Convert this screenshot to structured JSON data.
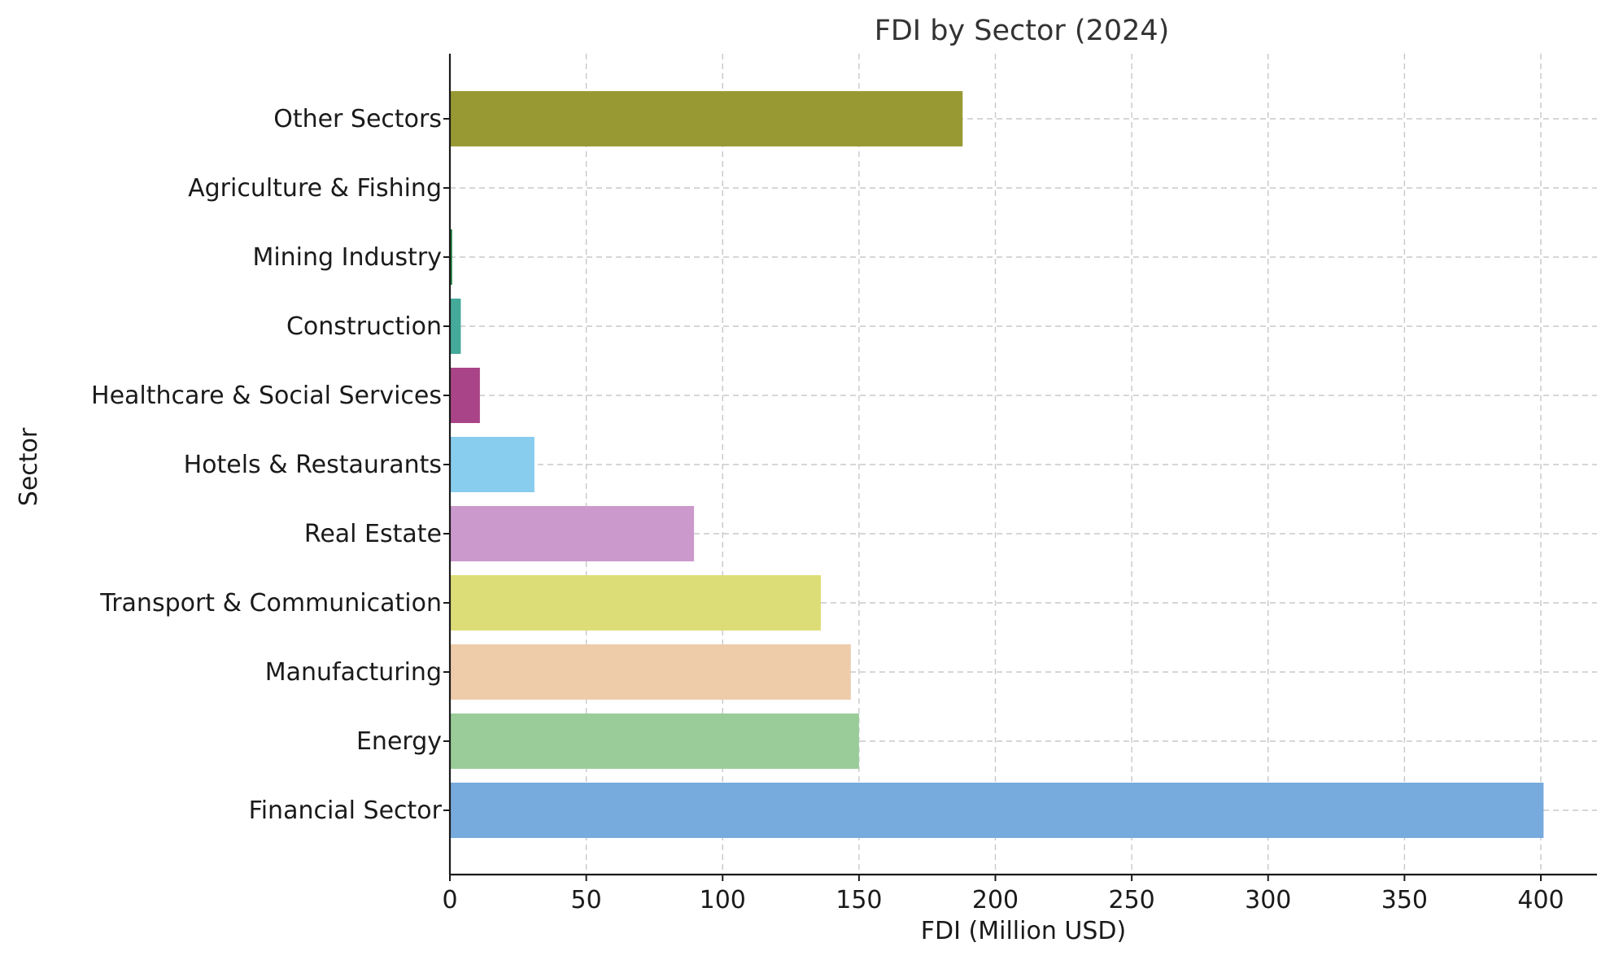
{
  "chart_data": {
    "type": "bar",
    "orientation": "horizontal",
    "title": "FDI by Sector (2024)",
    "xlabel": "FDI (Million USD)",
    "ylabel": "Sector",
    "xlim": [
      0,
      420
    ],
    "xticks": [
      0,
      50,
      100,
      150,
      200,
      250,
      300,
      350,
      400
    ],
    "grid": true,
    "categories": [
      "Financial Sector",
      "Energy",
      "Manufacturing",
      "Transport & Communication",
      "Real Estate",
      "Hotels & Restaurants",
      "Healthcare & Social Services",
      "Construction",
      "Mining Industry",
      "Agriculture & Fishing",
      "Other Sectors"
    ],
    "values": [
      401,
      150,
      147,
      136,
      89.5,
      31,
      11,
      4,
      0.8,
      0.1,
      188
    ],
    "colors": [
      "#77aadd",
      "#99cc99",
      "#eeccaa",
      "#dddd77",
      "#cc99cc",
      "#88ccee",
      "#aa4488",
      "#44aa99",
      "#117733",
      "#332288",
      "#999933"
    ]
  }
}
